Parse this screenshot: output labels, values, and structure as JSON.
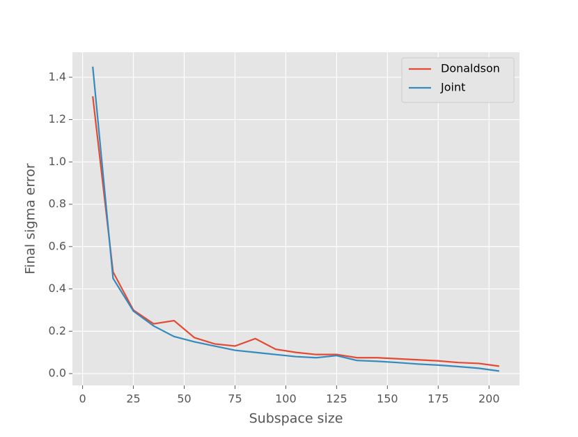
{
  "chart_data": {
    "type": "line",
    "x_label": "Subspace size",
    "y_label": "Final sigma error",
    "x": [
      5,
      15,
      25,
      35,
      45,
      55,
      65,
      75,
      85,
      95,
      105,
      115,
      125,
      135,
      145,
      155,
      165,
      175,
      185,
      195,
      205
    ],
    "series": [
      {
        "name": "Donaldson",
        "color": "#E24A33",
        "values": [
          1.31,
          0.48,
          0.3,
          0.235,
          0.25,
          0.17,
          0.14,
          0.13,
          0.165,
          0.115,
          0.1,
          0.09,
          0.09,
          0.075,
          0.075,
          0.07,
          0.065,
          0.06,
          0.052,
          0.048,
          0.035
        ]
      },
      {
        "name": "Joint",
        "color": "#348ABD",
        "values": [
          1.45,
          0.45,
          0.295,
          0.225,
          0.175,
          0.15,
          0.13,
          0.11,
          0.1,
          0.09,
          0.08,
          0.075,
          0.085,
          0.062,
          0.058,
          0.052,
          0.045,
          0.04,
          0.033,
          0.025,
          0.012
        ]
      }
    ],
    "xlim": [
      -5,
      215
    ],
    "ylim": [
      -0.056,
      1.518
    ],
    "xticks": [
      0,
      25,
      50,
      75,
      100,
      125,
      150,
      175,
      200
    ],
    "yticks": [
      {
        "value": 0,
        "label": "0.0"
      },
      0.2,
      0.4,
      0.6,
      0.8,
      {
        "value": 1,
        "label": "1.0"
      },
      1.2,
      1.4
    ],
    "grid": true,
    "legend": "upper-right"
  }
}
